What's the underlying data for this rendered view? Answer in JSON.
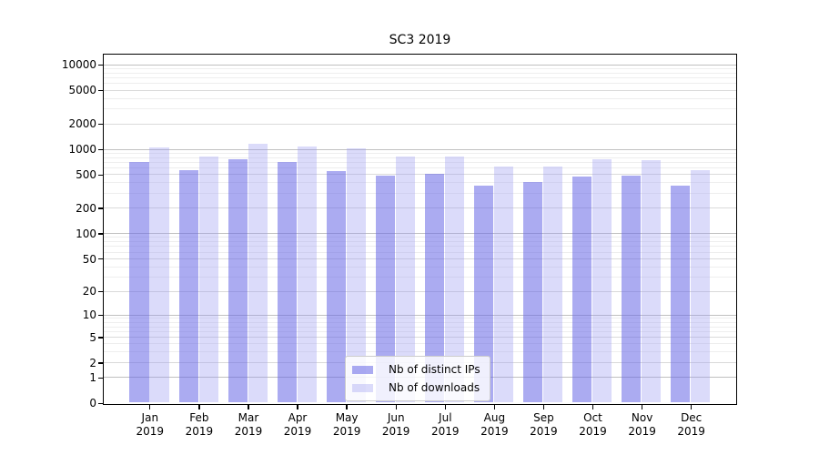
{
  "title": "SC3 2019",
  "colors": {
    "distinct_ips_fill": "rgba(102,102,230,0.55)",
    "downloads_fill": "rgba(153,153,240,0.35)",
    "grid_major": "#c0c0c0",
    "grid_mid": "#dadada",
    "grid_minor": "#eeeeee",
    "axis": "#000000"
  },
  "legend": {
    "items": [
      {
        "label": "Nb of distinct IPs",
        "color_key": "distinct_ips_fill"
      },
      {
        "label": "Nb of downloads",
        "color_key": "downloads_fill"
      }
    ]
  },
  "chart_data": {
    "type": "bar",
    "title": "SC3 2019",
    "categories": [
      "Jan 2019",
      "Feb 2019",
      "Mar 2019",
      "Apr 2019",
      "May 2019",
      "Jun 2019",
      "Jul 2019",
      "Aug 2019",
      "Sep 2019",
      "Oct 2019",
      "Nov 2019",
      "Dec 2019"
    ],
    "series": [
      {
        "name": "Nb of distinct IPs",
        "values": [
          700,
          565,
          745,
          695,
          545,
          480,
          500,
          365,
          400,
          470,
          485,
          370
        ]
      },
      {
        "name": "Nb of downloads",
        "values": [
          1050,
          820,
          1160,
          1060,
          1025,
          820,
          815,
          610,
          620,
          755,
          740,
          565
        ]
      }
    ],
    "xlabel": "",
    "ylabel": "",
    "yscale": "symlog (log10 of 1+value)",
    "yticks": [
      0,
      1,
      2,
      5,
      10,
      20,
      50,
      100,
      200,
      500,
      1000,
      2000,
      5000,
      10000
    ],
    "ylim": [
      0,
      13000
    ],
    "grid": "both",
    "legend_position": "lower center (inside plot)"
  }
}
